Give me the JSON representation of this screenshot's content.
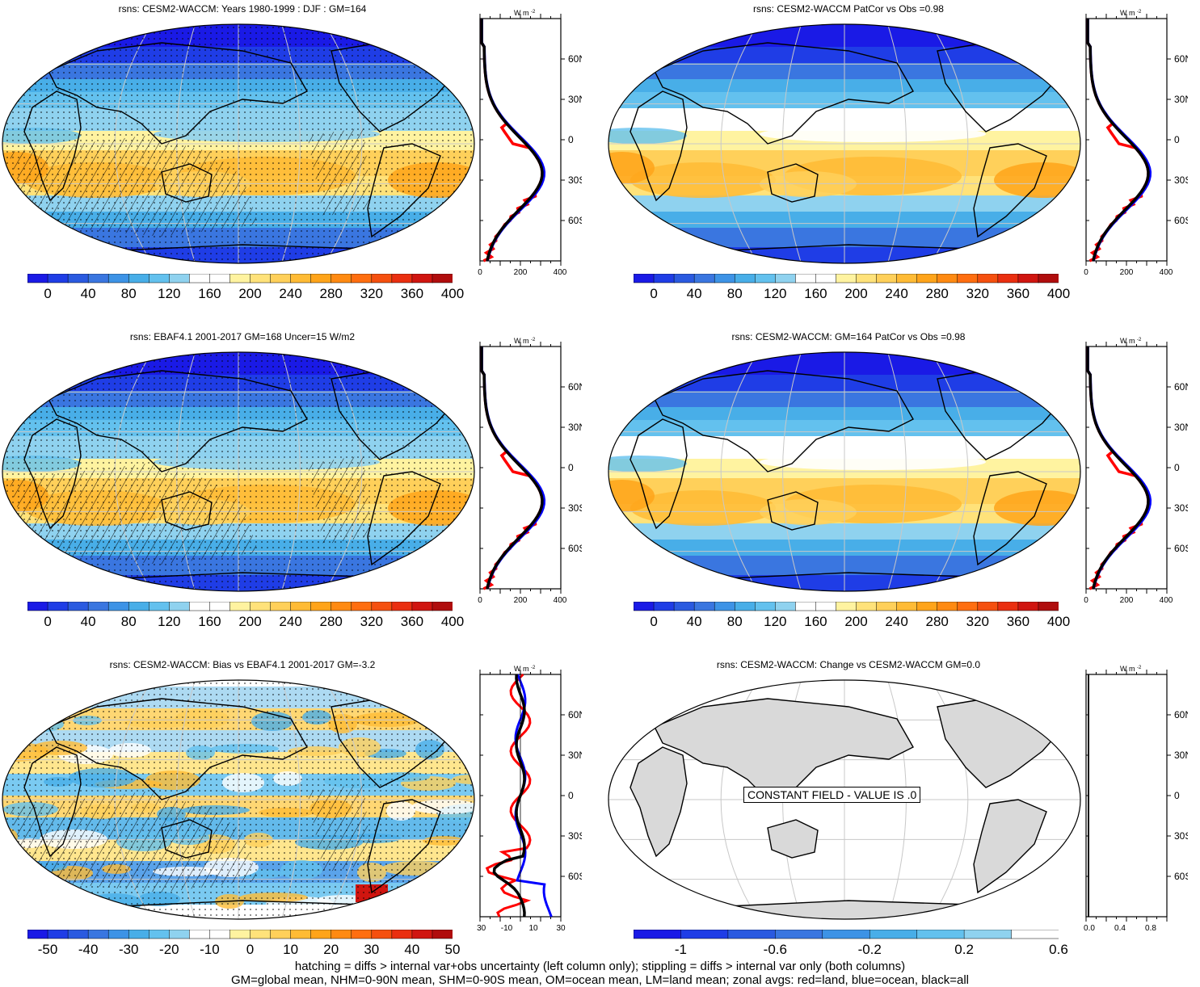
{
  "panels": [
    {
      "id": "p1",
      "title": "rsns: CESM2-WACCM: Years 1980-1999 : DJF : GM=164",
      "scale": "abs",
      "hatch": true,
      "stipple": true
    },
    {
      "id": "p2",
      "title": "rsns: CESM2-WACCM PatCor vs Obs =0.98",
      "scale": "abs",
      "hatch": false,
      "stipple": false
    },
    {
      "id": "p3",
      "title": "rsns: EBAF4.1 2001-2017 GM=168 Uncer=15 W/m2",
      "scale": "abs",
      "hatch": true,
      "stipple": true
    },
    {
      "id": "p4",
      "title": "rsns: CESM2-WACCM: GM=164 PatCor vs Obs =0.98",
      "scale": "abs",
      "hatch": false,
      "stipple": false
    },
    {
      "id": "p5",
      "title": "rsns: CESM2-WACCM: Bias vs EBAF4.1 2001-2017 GM=-3.2",
      "scale": "bias",
      "hatch": true,
      "stipple": true
    },
    {
      "id": "p6",
      "title": "rsns: CESM2-WACCM: Change vs CESM2-WACCM GM=0.0",
      "scale": "const",
      "hatch": false,
      "stipple": false
    }
  ],
  "colorbars": {
    "abs": {
      "labels": [
        "0",
        "40",
        "80",
        "120",
        "160",
        "200",
        "240",
        "280",
        "320",
        "360",
        "400"
      ],
      "colors": [
        "#1a1ae6",
        "#1f3de6",
        "#2a5ae0",
        "#3a76e0",
        "#3d93e6",
        "#48aee8",
        "#63c1ee",
        "#8fd2ef",
        "#ffffff",
        "#ffffff",
        "#fff3a0",
        "#ffe27a",
        "#ffd05a",
        "#ffbb35",
        "#ffa41a",
        "#ff8a12",
        "#ff6e10",
        "#f5500f",
        "#ea2f10",
        "#d01510",
        "#b00d0d"
      ]
    },
    "bias": {
      "labels": [
        "-50",
        "-40",
        "-30",
        "-20",
        "-10",
        "0",
        "10",
        "20",
        "30",
        "40",
        "50"
      ],
      "colors": [
        "#1a1ae6",
        "#1f3de6",
        "#2a5ae0",
        "#3a76e0",
        "#3d93e6",
        "#48aee8",
        "#63c1ee",
        "#8fd2ef",
        "#ffffff",
        "#ffffff",
        "#fff3a0",
        "#ffe27a",
        "#ffd05a",
        "#ffbb35",
        "#ffa41a",
        "#ff8a12",
        "#ff6e10",
        "#f5500f",
        "#ea2f10",
        "#d01510",
        "#b00d0d"
      ]
    },
    "const": {
      "labels": [
        "-1",
        "-0.6",
        "-0.2",
        "0.2",
        "0.6"
      ],
      "colors": [
        "#1a1ae6",
        "#1f3de6",
        "#2a5ae0",
        "#3a76e0",
        "#3d93e6",
        "#48aee8",
        "#63c1ee",
        "#8fd2ef",
        "#ffffff"
      ]
    }
  },
  "zonal": {
    "unit": "W m",
    "unit_sup": "-2",
    "lat_labels": [
      "60N",
      "30N",
      "0",
      "30S",
      "60S"
    ],
    "x_abs": [
      "0",
      "200",
      "400"
    ],
    "x_bias": [
      "-30",
      "-10",
      "10",
      "30"
    ],
    "x_const": [
      "0.0",
      "0.4",
      "0.8"
    ],
    "legend": {
      "land": "red",
      "ocean": "blue",
      "all": "black"
    }
  },
  "constant_field_label": "CONSTANT FIELD - VALUE IS .0",
  "footer": {
    "line1": "hatching = diffs > internal var+obs uncertainty (left column only); stippling = diffs > internal var only (both columns)",
    "line2": "GM=global mean, NHM=0-90N mean, SHM=0-90S mean, OM=ocean mean, LM=land mean; zonal avgs: red=land, blue=ocean, black=all"
  }
}
